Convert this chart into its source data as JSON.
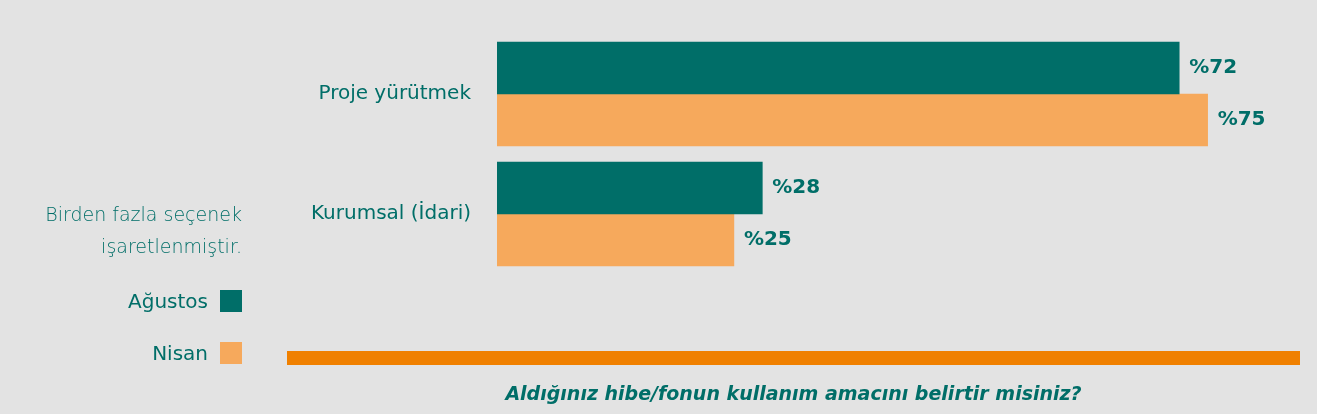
{
  "chart_data": {
    "type": "bar",
    "orientation": "horizontal",
    "title": "Aldığınız hibe/fonun kullanım amacını belirtir misiniz?",
    "annotations": [
      "Birden fazla seçenek işaretlenmiştir."
    ],
    "categories": [
      "Proje yürütmek",
      "Kurumsal (İdari)"
    ],
    "series": [
      {
        "name": "Ağustos",
        "color": "#006e68",
        "values": [
          72,
          28
        ],
        "value_labels": [
          "%72",
          "%28"
        ]
      },
      {
        "name": "Nisan",
        "color": "#f6a95c",
        "values": [
          75,
          25
        ],
        "value_labels": [
          "%75",
          "%25"
        ]
      }
    ],
    "tick_labels": "y",
    "legend": "bottom left"
  }
}
